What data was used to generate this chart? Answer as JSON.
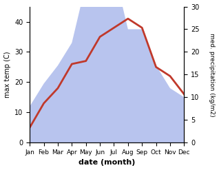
{
  "months": [
    "Jan",
    "Feb",
    "Mar",
    "Apr",
    "May",
    "Jun",
    "Jul",
    "Aug",
    "Sep",
    "Oct",
    "Nov",
    "Dec"
  ],
  "temperature": [
    5,
    13,
    18,
    26,
    27,
    35,
    38,
    41,
    38,
    25,
    22,
    16
  ],
  "precipitation": [
    8,
    13,
    17,
    22,
    35,
    44,
    38,
    25,
    25,
    17,
    12,
    10
  ],
  "temp_color": "#c0392b",
  "precip_color_fill": "#b8c4ee",
  "temp_ylim": [
    0,
    45
  ],
  "precip_ylim": [
    0,
    30
  ],
  "temp_yticks": [
    0,
    10,
    20,
    30,
    40
  ],
  "precip_yticks": [
    0,
    5,
    10,
    15,
    20,
    25,
    30
  ],
  "precip_scale_factor": 1.5,
  "xlabel": "date (month)",
  "ylabel_left": "max temp (C)",
  "ylabel_right": "med. precipitation (kg/m2)",
  "fig_width": 3.18,
  "fig_height": 2.47,
  "dpi": 100
}
